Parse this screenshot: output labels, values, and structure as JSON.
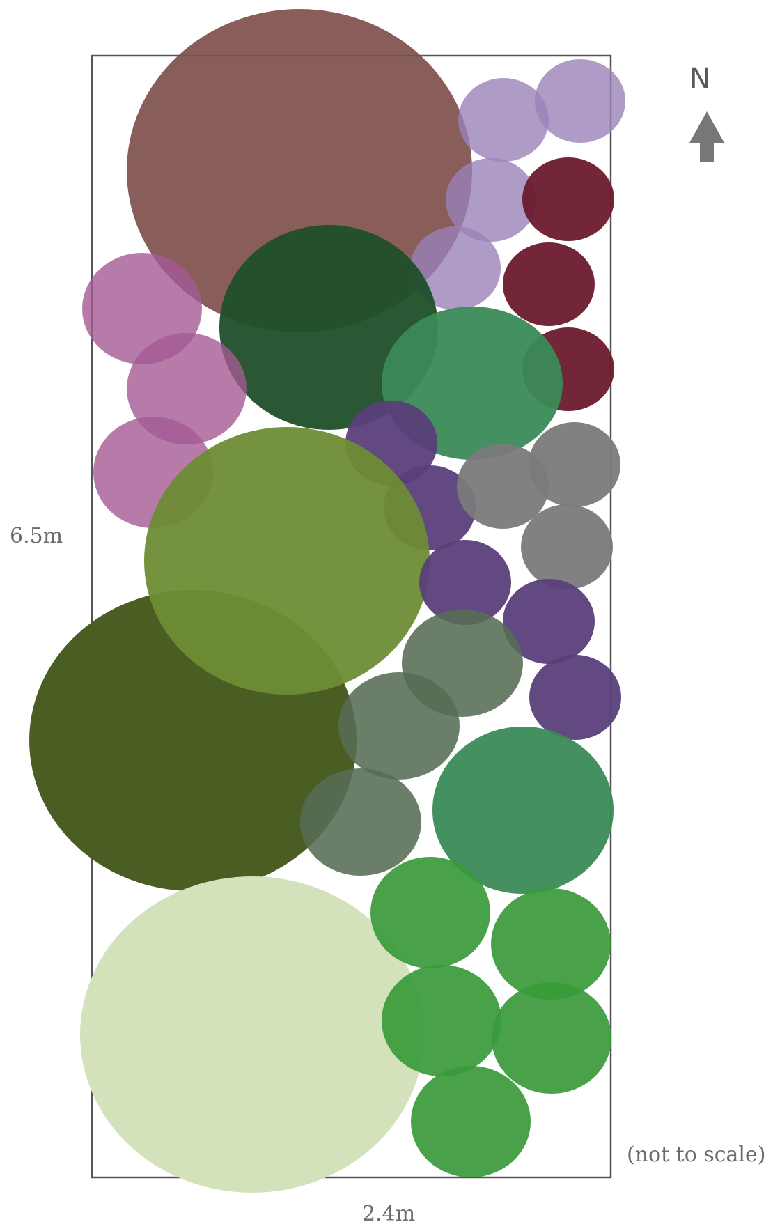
{
  "labels": {
    "height": "6.5m",
    "width": "2.4m",
    "scale_note": "(not to scale)",
    "north": "N"
  },
  "colors": {
    "outline": "#555555",
    "arrow": "#777777",
    "mauve": "#7e4f4c",
    "dark_maroon_brown": "#3b1a12",
    "lavender": "#9a82b8",
    "maroon": "#6a1a2c",
    "pink_purple": "#a45a94",
    "dark_green": "#1f4f2a",
    "mid_green": "#3b8a57",
    "deep_purple": "#5a3f7a",
    "grey": "#7a7a7a",
    "olive": "#6e8c34",
    "dark_olive": "#4a5e24",
    "grey_green": "#566c54",
    "bright_green": "#3a9a3a",
    "pale_green": "#d4e2bc"
  },
  "plants": [
    {
      "name": "mauve-tree",
      "color": "mauve",
      "opacity": 0.92
    },
    {
      "name": "lavender-shrub-1",
      "color": "lavender",
      "opacity": 0.8
    },
    {
      "name": "lavender-shrub-2",
      "color": "lavender",
      "opacity": 0.8
    },
    {
      "name": "lavender-shrub-3",
      "color": "lavender",
      "opacity": 0.8
    },
    {
      "name": "lavender-shrub-4",
      "color": "lavender",
      "opacity": 0.8
    },
    {
      "name": "maroon-shrub-1",
      "color": "maroon",
      "opacity": 0.95
    },
    {
      "name": "maroon-shrub-2",
      "color": "maroon",
      "opacity": 0.95
    },
    {
      "name": "maroon-shrub-3",
      "color": "maroon",
      "opacity": 0.95
    },
    {
      "name": "dark-green-shrub",
      "color": "dark_green",
      "opacity": 0.95
    },
    {
      "name": "pink-purple-shrub-1",
      "color": "pink_purple",
      "opacity": 0.8
    },
    {
      "name": "pink-purple-shrub-2",
      "color": "pink_purple",
      "opacity": 0.8
    },
    {
      "name": "pink-purple-shrub-3",
      "color": "pink_purple",
      "opacity": 0.8
    },
    {
      "name": "mid-green-shrub-1",
      "color": "mid_green",
      "opacity": 0.95
    },
    {
      "name": "deep-purple-shrub-1",
      "color": "deep_purple",
      "opacity": 0.95
    },
    {
      "name": "deep-purple-shrub-2",
      "color": "deep_purple",
      "opacity": 0.95
    },
    {
      "name": "grey-shrub-1",
      "color": "grey",
      "opacity": 0.95
    },
    {
      "name": "grey-shrub-2",
      "color": "grey",
      "opacity": 0.95
    },
    {
      "name": "grey-shrub-3",
      "color": "grey",
      "opacity": 0.95
    },
    {
      "name": "dark-olive-tree",
      "color": "dark_olive",
      "opacity": 1
    },
    {
      "name": "olive-tree",
      "color": "olive",
      "opacity": 0.95
    },
    {
      "name": "deep-purple-shrub-3",
      "color": "deep_purple",
      "opacity": 0.95
    },
    {
      "name": "deep-purple-shrub-4",
      "color": "deep_purple",
      "opacity": 0.95
    },
    {
      "name": "deep-purple-shrub-5",
      "color": "deep_purple",
      "opacity": 0.95
    },
    {
      "name": "grey-green-shrub-1",
      "color": "grey_green",
      "opacity": 0.88
    },
    {
      "name": "grey-green-shrub-2",
      "color": "grey_green",
      "opacity": 0.88
    },
    {
      "name": "grey-green-shrub-3",
      "color": "grey_green",
      "opacity": 0.88
    },
    {
      "name": "mid-green-shrub-2",
      "color": "mid_green",
      "opacity": 0.95
    },
    {
      "name": "pale-green-tree",
      "color": "pale_green",
      "opacity": 1
    },
    {
      "name": "bright-green-shrub-1",
      "color": "bright_green",
      "opacity": 0.92
    },
    {
      "name": "bright-green-shrub-2",
      "color": "bright_green",
      "opacity": 0.92
    },
    {
      "name": "bright-green-shrub-3",
      "color": "bright_green",
      "opacity": 0.92
    },
    {
      "name": "bright-green-shrub-4",
      "color": "bright_green",
      "opacity": 0.92
    },
    {
      "name": "bright-green-shrub-5",
      "color": "bright_green",
      "opacity": 0.92
    }
  ]
}
